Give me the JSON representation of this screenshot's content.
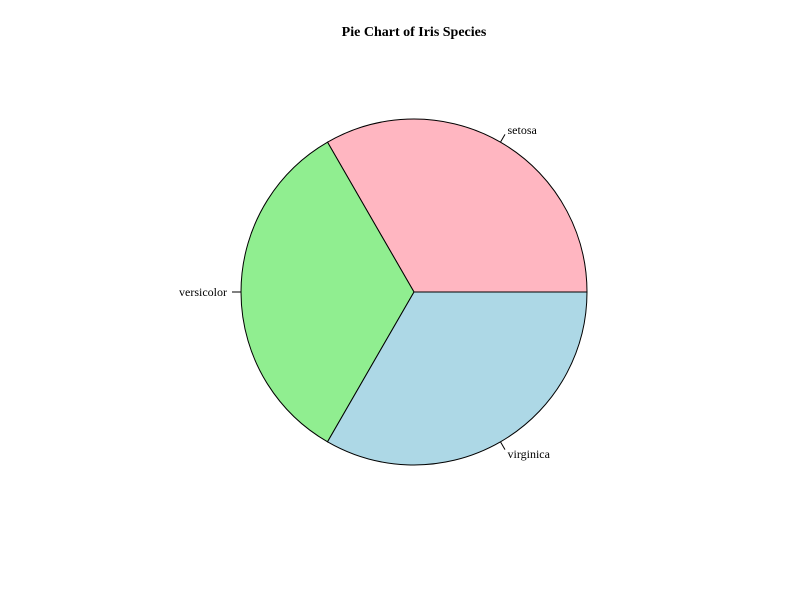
{
  "chart_data": {
    "type": "pie",
    "title": "Pie Chart of Iris Species",
    "start_angle_deg": 0,
    "direction": "counterclockwise",
    "slices": [
      {
        "label": "setosa",
        "value": 50,
        "color": "#FFB6C1"
      },
      {
        "label": "versicolor",
        "value": 50,
        "color": "#90EE90"
      },
      {
        "label": "virginica",
        "value": 50,
        "color": "#ADD8E6"
      }
    ]
  }
}
